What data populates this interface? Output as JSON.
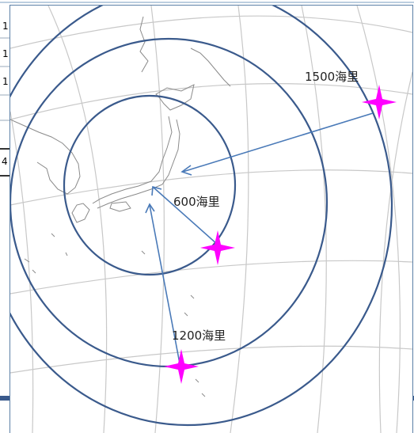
{
  "background_sheet": {
    "row_markers": [
      "1",
      "1",
      "1"
    ],
    "cell_marker": "4"
  },
  "map": {
    "range_labels": {
      "inner": "600海里",
      "middle": "1200海里",
      "outer": "1500海里"
    },
    "colors": {
      "range_ring": "#3a5a8c",
      "arrow": "#4a7ab8",
      "marker": "#ff00ff",
      "graticule": "#c8c8c8",
      "coastline": "#8a8a8a"
    },
    "icons": {
      "marker": "four-point-star-icon"
    }
  }
}
